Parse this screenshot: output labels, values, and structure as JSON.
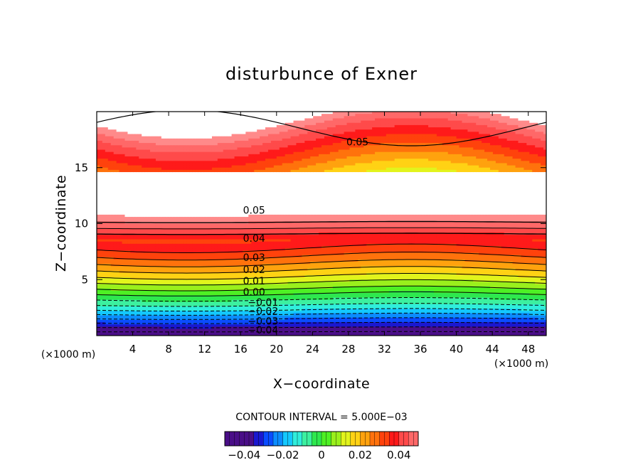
{
  "chart_data": {
    "type": "contour",
    "title": "disturbunce of Exner",
    "xlabel": "X−coordinate",
    "ylabel": "Z−coordinate",
    "x_unit": "(×1000 m)",
    "z_unit": "(×1000 m)",
    "xlim": [
      0,
      50
    ],
    "ylim": [
      0,
      20
    ],
    "x_ticks": [
      4,
      8,
      12,
      16,
      20,
      24,
      28,
      32,
      36,
      40,
      44,
      48
    ],
    "y_ticks": [
      5,
      10,
      15
    ],
    "contour_interval_text": "CONTOUR INTERVAL = 5.000E−03",
    "contour_levels": [
      -0.04,
      -0.035,
      -0.03,
      -0.025,
      -0.02,
      -0.015,
      -0.01,
      -0.005,
      0,
      0.005,
      0.01,
      0.015,
      0.02,
      0.025,
      0.03,
      0.035,
      0.04,
      0.045,
      0.05
    ],
    "contour_labels": [
      {
        "text": "0.05",
        "x": 29,
        "z": 17.3
      },
      {
        "text": "0.05",
        "x": 17.5,
        "z": 11.2
      },
      {
        "text": "0.04",
        "x": 17.5,
        "z": 8.7
      },
      {
        "text": "0.03",
        "x": 17.5,
        "z": 7.0
      },
      {
        "text": "0.02",
        "x": 17.5,
        "z": 5.9
      },
      {
        "text": "0.01",
        "x": 17.5,
        "z": 4.9
      },
      {
        "text": "0.00",
        "x": 17.5,
        "z": 3.9
      },
      {
        "text": "−0.01",
        "x": 18.5,
        "z": 3.0
      },
      {
        "text": "−0.02",
        "x": 18.5,
        "z": 2.2
      },
      {
        "text": "−0.03",
        "x": 18.5,
        "z": 1.3
      },
      {
        "text": "−0.04",
        "x": 18.5,
        "z": 0.5
      }
    ],
    "colorbar": {
      "min": -0.05,
      "max": 0.05,
      "tick_values": [
        -0.04,
        -0.02,
        0,
        0.02,
        0.04
      ],
      "tick_labels": [
        "−0.04",
        "−0.02",
        "0",
        "0.02",
        "0.04"
      ]
    }
  }
}
